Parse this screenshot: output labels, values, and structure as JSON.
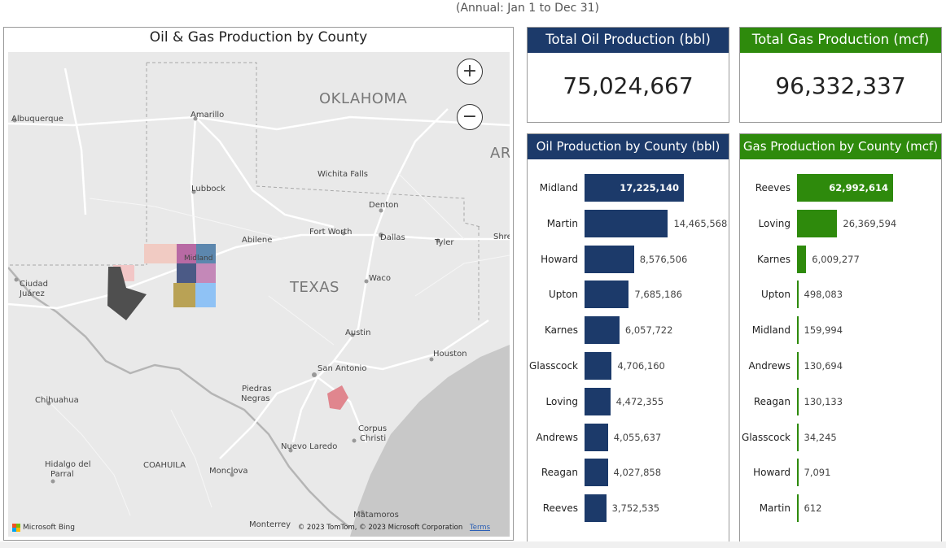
{
  "subtitle": "(Annual: Jan 1 to Dec 31)",
  "map": {
    "title": "Oil & Gas Production by County",
    "zoom_in": "+",
    "zoom_out": "−",
    "attribution": "Microsoft Bing",
    "copyright": "© 2023 TomTom, © 2023 Microsoft Corporation",
    "terms": "Terms",
    "labels": {
      "oklahoma": "OKLAHOMA",
      "texas": "TEXAS",
      "ar": "AR",
      "albuquerque": "Albuquerque",
      "amarillo": "Amarillo",
      "wichita_falls": "Wichita Falls",
      "lubbock": "Lubbock",
      "denton": "Denton",
      "fort_worth": "Fort Worth",
      "dallas": "Dallas",
      "tyler": "Tyler",
      "shreveport": "Shre",
      "abilene": "Abilene",
      "midland": "Midland",
      "ciudad_juarez_1": "Ciudad",
      "ciudad_juarez_2": "Juárez",
      "waco": "Waco",
      "austin": "Austin",
      "houston": "Houston",
      "san_antonio": "San Antonio",
      "chihuahua": "Chihuahua",
      "piedras_negras_1": "Piedras",
      "piedras_negras_2": "Negras",
      "corpus_christi_1": "Corpus",
      "corpus_christi_2": "Christi",
      "nuevo_laredo": "Nuevo Laredo",
      "hidalgo_1": "Hidalgo del",
      "hidalgo_2": "Parral",
      "coahuila": "COAHUILA",
      "monclova": "Monclova",
      "monterrey": "Monterrey",
      "matamoros": "Matamoros"
    }
  },
  "cards": {
    "total_oil": {
      "title": "Total Oil Production (bbl)",
      "value": "75,024,667"
    },
    "total_gas": {
      "title": "Total Gas Production (mcf)",
      "value": "96,332,337"
    }
  },
  "colors": {
    "oil": "#1c3a6a",
    "gas": "#2e8a0c"
  },
  "chart_data": [
    {
      "type": "bar",
      "title": "Oil Production by County (bbl)",
      "categories": [
        "Midland",
        "Martin",
        "Howard",
        "Upton",
        "Karnes",
        "Glasscock",
        "Loving",
        "Andrews",
        "Reagan",
        "Reeves"
      ],
      "values": [
        17225140,
        14465568,
        8576506,
        7685186,
        6057722,
        4706160,
        4472355,
        4055637,
        4027858,
        3752535
      ],
      "value_labels": [
        "17,225,140",
        "14,465,568",
        "8,576,506",
        "7,685,186",
        "6,057,722",
        "4,706,160",
        "4,472,355",
        "4,055,637",
        "4,027,858",
        "3,752,535"
      ],
      "orientation": "horizontal"
    },
    {
      "type": "bar",
      "title": "Gas Production by County (mcf)",
      "categories": [
        "Reeves",
        "Loving",
        "Karnes",
        "Upton",
        "Midland",
        "Andrews",
        "Reagan",
        "Glasscock",
        "Howard",
        "Martin"
      ],
      "values": [
        62992614,
        26369594,
        6009277,
        498083,
        159994,
        130694,
        130133,
        34245,
        7091,
        612
      ],
      "value_labels": [
        "62,992,614",
        "26,369,594",
        "6,009,277",
        "498,083",
        "159,994",
        "130,694",
        "130,133",
        "34,245",
        "7,091",
        "612"
      ],
      "orientation": "horizontal"
    }
  ]
}
